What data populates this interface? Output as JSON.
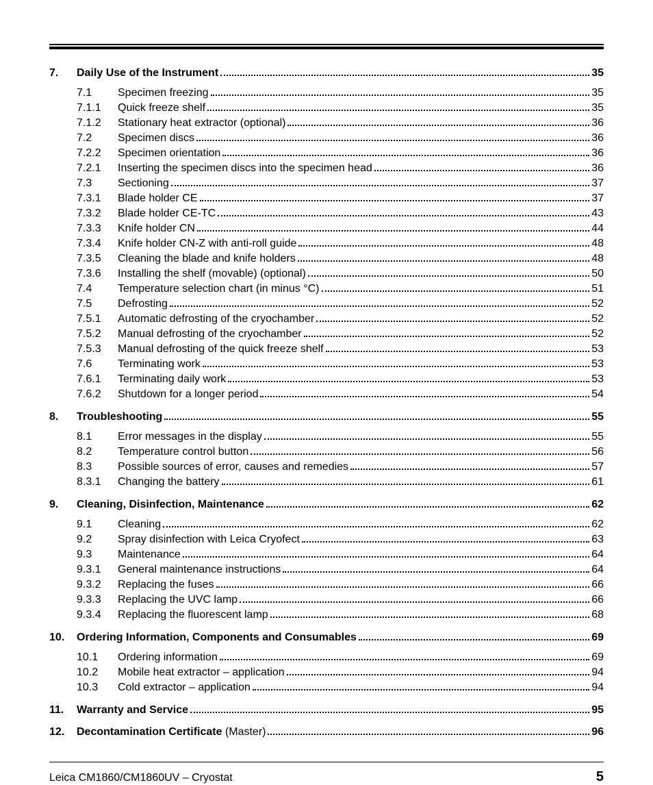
{
  "footer": {
    "product": "Leica CM1860/CM1860UV – Cryostat",
    "page_number": "5"
  },
  "toc": [
    {
      "num": "7.",
      "title": "Daily Use of the Instrument",
      "page": "35",
      "entries": [
        {
          "num": "7.1",
          "title": "Specimen freezing",
          "page": "35"
        },
        {
          "num": "7.1.1",
          "title": "Quick freeze shelf",
          "page": "35"
        },
        {
          "num": "7.1.2",
          "title": "Stationary heat extractor (optional)",
          "page": "36"
        },
        {
          "num": "7.2",
          "title": "Specimen discs",
          "page": "36"
        },
        {
          "num": "7.2.2",
          "title": "Specimen orientation",
          "page": "36"
        },
        {
          "num": "7.2.1",
          "title": "Inserting the specimen discs into the specimen head",
          "page": "36"
        },
        {
          "num": "7.3",
          "title": "Sectioning",
          "page": "37"
        },
        {
          "num": "7.3.1",
          "title": "Blade holder CE",
          "page": "37"
        },
        {
          "num": "7.3.2",
          "title": "Blade holder CE-TC",
          "page": "43"
        },
        {
          "num": "7.3.3",
          "title": "Knife holder CN",
          "page": "44"
        },
        {
          "num": "7.3.4",
          "title": "Knife holder CN-Z with anti-roll guide",
          "page": "48"
        },
        {
          "num": "7.3.5",
          "title": " Cleaning the blade and knife holders",
          "page": "48"
        },
        {
          "num": "7.3.6",
          "title": "Installing the shelf (movable) (optional)",
          "page": "50"
        },
        {
          "num": "7.4",
          "title": "Temperature selection chart (in minus °C)",
          "page": "51"
        },
        {
          "num": "7.5",
          "title": "Defrosting",
          "page": "52"
        },
        {
          "num": "7.5.1",
          "title": "Automatic defrosting of the cryochamber",
          "page": "52"
        },
        {
          "num": "7.5.2",
          "title": "Manual defrosting of the cryochamber",
          "page": "52"
        },
        {
          "num": "7.5.3",
          "title": "Manual defrosting of the quick freeze shelf",
          "page": "53"
        },
        {
          "num": "7.6",
          "title": "Terminating work",
          "page": "53"
        },
        {
          "num": "7.6.1",
          "title": "Terminating daily work",
          "page": "53"
        },
        {
          "num": "7.6.2",
          "title": "Shutdown for a longer period",
          "page": "54"
        }
      ]
    },
    {
      "num": "8.",
      "title": "Troubleshooting",
      "page": "55",
      "entries": [
        {
          "num": "8.1",
          "title": "Error messages in the display",
          "page": "55"
        },
        {
          "num": "8.2",
          "title": "Temperature control button",
          "page": "56"
        },
        {
          "num": "8.3",
          "title": "Possible sources of error, causes and remedies",
          "page": "57"
        },
        {
          "num": "8.3.1",
          "title": "Changing the battery",
          "page": "61"
        }
      ]
    },
    {
      "num": "9.",
      "title": "Cleaning, Disinfection, Maintenance",
      "page": "62",
      "entries": [
        {
          "num": "9.1",
          "title": "Cleaning",
          "page": "62"
        },
        {
          "num": "9.2",
          "title": "Spray disinfection with Leica Cryofect",
          "page": "63"
        },
        {
          "num": "9.3",
          "title": "Maintenance",
          "page": "64"
        },
        {
          "num": "9.3.1",
          "title": "General maintenance instructions",
          "page": "64"
        },
        {
          "num": "9.3.2",
          "title": "Replacing the fuses",
          "page": "66"
        },
        {
          "num": "9.3.3",
          "title": "Replacing the UVC lamp",
          "page": "66"
        },
        {
          "num": "9.3.4",
          "title": "Replacing the fluorescent lamp",
          "page": "68"
        }
      ]
    },
    {
      "num": "10.",
      "title": "Ordering Information, Components and Consumables",
      "page": "69",
      "entries": [
        {
          "num": "10.1",
          "title": "Ordering information",
          "page": "69"
        },
        {
          "num": "10.2",
          "title": "Mobile heat extractor – application",
          "page": "94"
        },
        {
          "num": "10.3",
          "title": "Cold extractor – application",
          "page": "94"
        }
      ]
    },
    {
      "num": "11.",
      "title": "Warranty and Service",
      "page": "95",
      "entries": []
    },
    {
      "num": "12.",
      "title": "Decontamination Certificate",
      "title_suffix": " (Master)",
      "page": "96",
      "entries": []
    }
  ]
}
